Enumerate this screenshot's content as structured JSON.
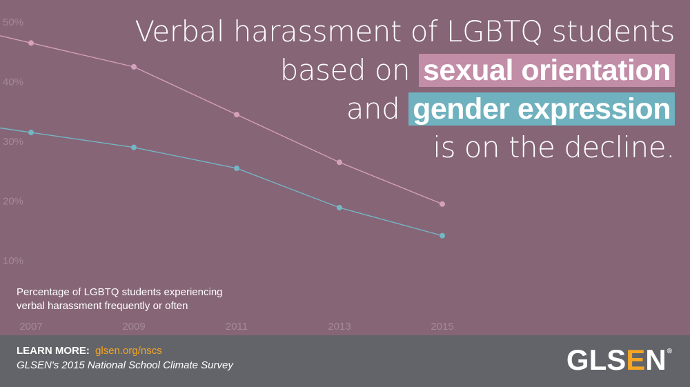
{
  "headline": {
    "line1": "Verbal harassment of LGBTQ students",
    "line2_prefix": "based on",
    "highlight1": "sexual orientation",
    "line3_prefix": "and",
    "highlight2": "gender expression",
    "line4": "is on the decline."
  },
  "chart_data": {
    "type": "line",
    "x": [
      "2007",
      "2009",
      "2011",
      "2013",
      "2015"
    ],
    "yticks": [
      "10%",
      "20%",
      "30%",
      "40%",
      "50%"
    ],
    "ylim": [
      10,
      50
    ],
    "series": [
      {
        "values": [
          46.5,
          42.5,
          34.5,
          26.5,
          19.5
        ],
        "color": "#d4a0ba"
      },
      {
        "values": [
          31.5,
          29.0,
          25.5,
          18.9,
          14.2
        ],
        "color": "#74b6c4"
      }
    ],
    "caption_line1": "Percentage of LGBTQ students experiencing",
    "caption_line2": "verbal harassment frequently or often",
    "grid": false
  },
  "footer": {
    "learn_label": "LEARN MORE:",
    "learn_link": "glsen.org/nscs",
    "source": "GLSEN's 2015 National School Climate Survey"
  },
  "logo": {
    "part1": "GLS",
    "accent": "E",
    "part2": "N",
    "reg": "®",
    "accent_color": "#f5a623"
  }
}
